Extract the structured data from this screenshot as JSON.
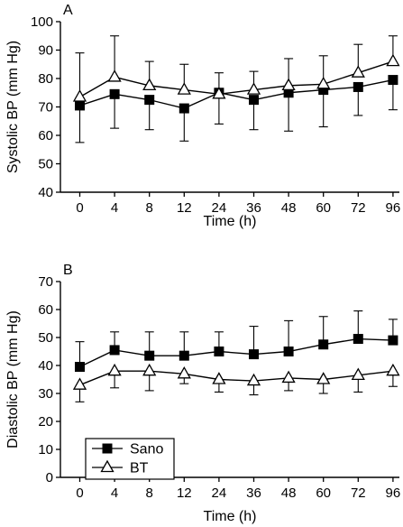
{
  "chart_data": [
    {
      "type": "line",
      "panel_label": "A",
      "xlabel": "Time (h)",
      "ylabel": "Systolic BP (mm Hg)",
      "categories": [
        "0",
        "4",
        "8",
        "12",
        "24",
        "36",
        "48",
        "60",
        "72",
        "96"
      ],
      "ylim": [
        40,
        100
      ],
      "yticks": [
        "40",
        "50",
        "60",
        "70",
        "80",
        "90",
        "100"
      ],
      "grid": false,
      "series": [
        {
          "name": "Sano",
          "marker": "square-filled",
          "values": [
            70.5,
            74.5,
            72.5,
            69.5,
            75,
            72.5,
            75,
            76,
            77,
            79.5
          ],
          "error": [
            13,
            12,
            10.5,
            11.5,
            11,
            10.5,
            13.5,
            13,
            10,
            10.5
          ],
          "error_direction": "down"
        },
        {
          "name": "BT",
          "marker": "triangle-open",
          "values": [
            73.5,
            80.5,
            77.5,
            76,
            74.5,
            76,
            77.5,
            78,
            82,
            86
          ],
          "error": [
            15.5,
            14.5,
            8.5,
            9,
            7.5,
            6.5,
            9.5,
            10,
            10,
            9
          ],
          "error_direction": "up"
        }
      ]
    },
    {
      "type": "line",
      "panel_label": "B",
      "xlabel": "Time (h)",
      "ylabel": "Diastolic BP (mm Hg)",
      "categories": [
        "0",
        "4",
        "8",
        "12",
        "24",
        "36",
        "48",
        "60",
        "72",
        "96"
      ],
      "ylim": [
        0,
        70
      ],
      "yticks": [
        "0",
        "10",
        "20",
        "30",
        "40",
        "50",
        "60",
        "70"
      ],
      "grid": false,
      "legend": {
        "placement": "bottom-left",
        "entries": [
          "Sano",
          "BT"
        ]
      },
      "series": [
        {
          "name": "Sano",
          "marker": "square-filled",
          "values": [
            39.5,
            45.5,
            43.5,
            43.5,
            45,
            44,
            45,
            47.5,
            49.5,
            49
          ],
          "error": [
            9,
            6.5,
            8.5,
            8.5,
            7,
            10,
            11,
            10,
            10,
            7.5
          ],
          "error_direction": "up"
        },
        {
          "name": "BT",
          "marker": "triangle-open",
          "values": [
            33,
            38,
            38,
            37,
            35,
            34.5,
            35.5,
            35,
            36.5,
            38
          ],
          "error": [
            6,
            6,
            7,
            3.5,
            4.5,
            5,
            4.5,
            5,
            6,
            5.5
          ],
          "error_direction": "down"
        }
      ]
    }
  ]
}
